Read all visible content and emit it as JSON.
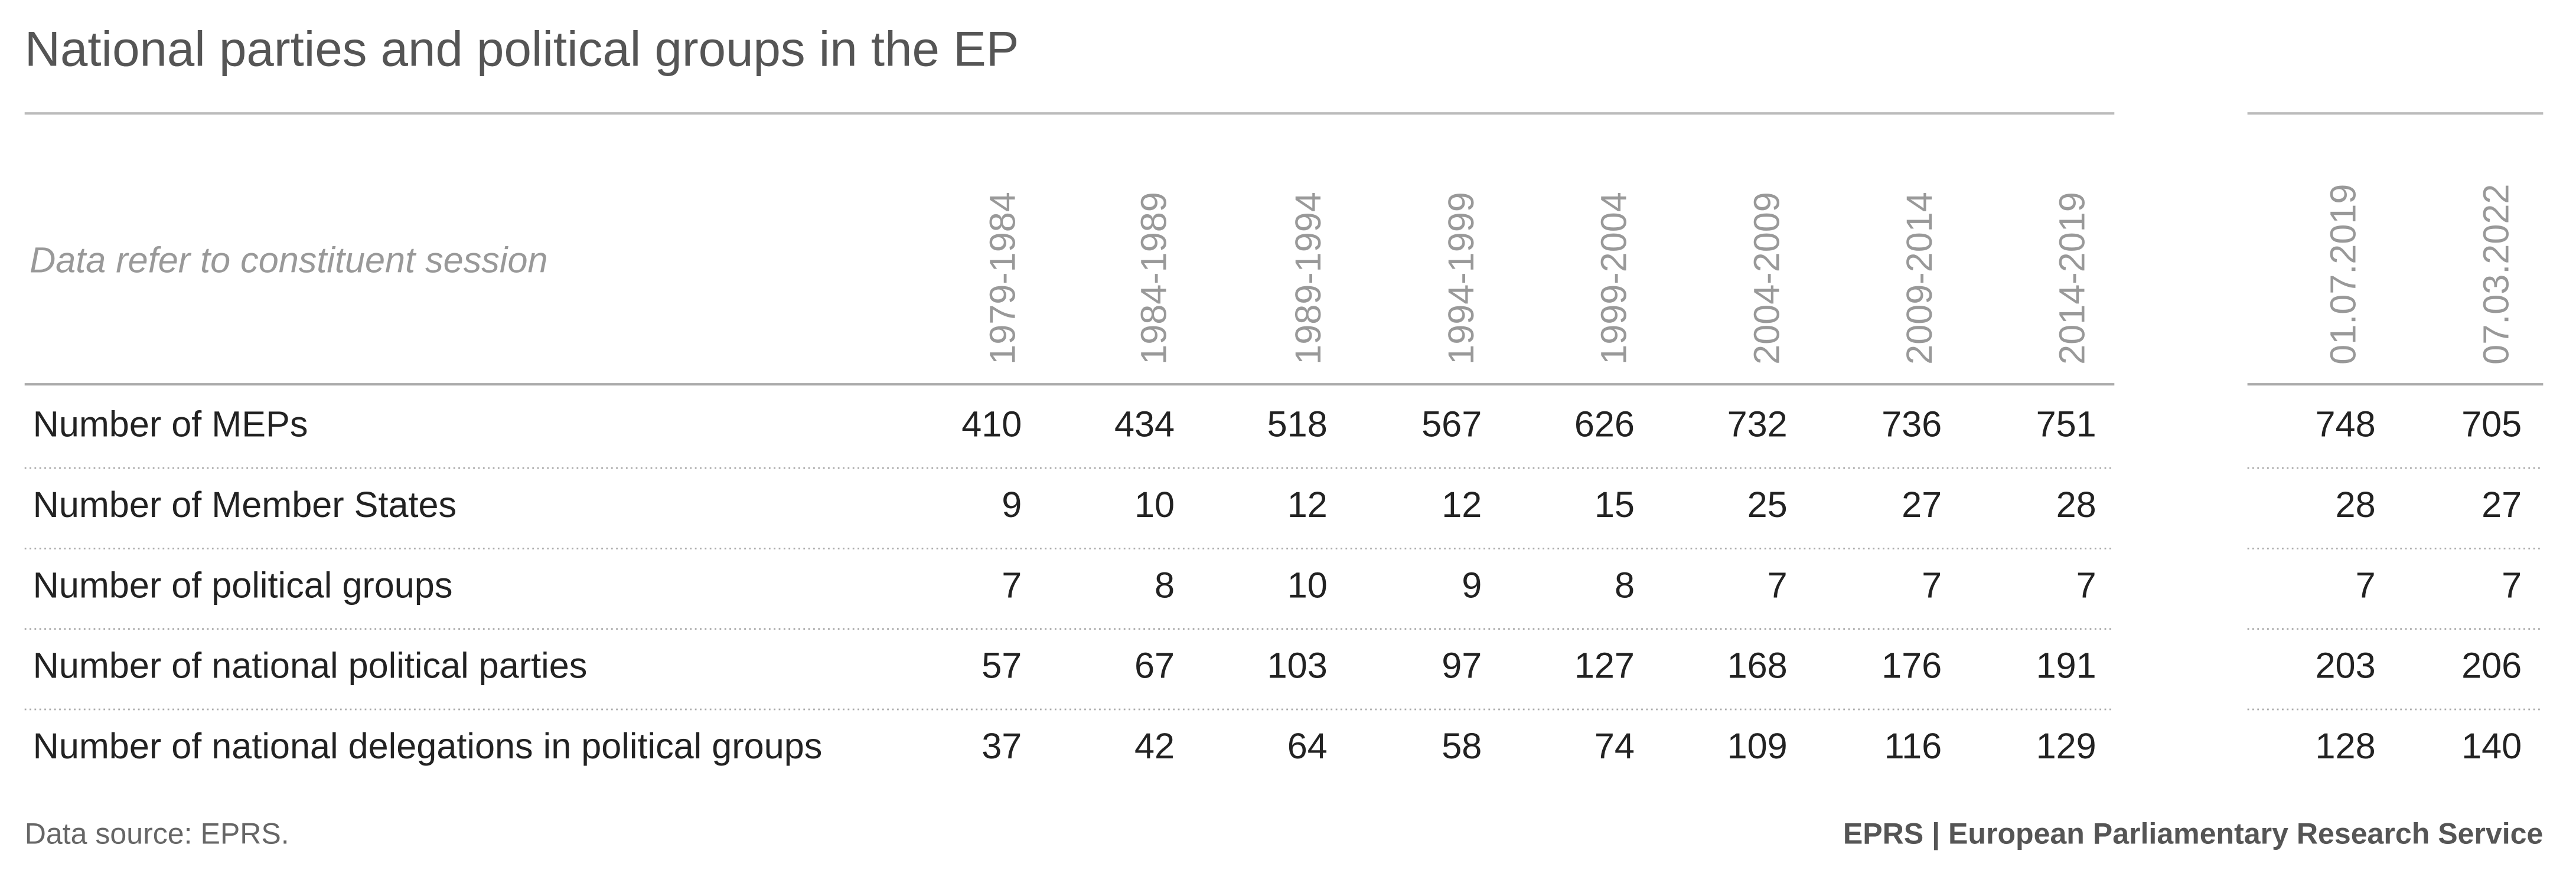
{
  "header": {
    "title": "National parties and political groups in the EP"
  },
  "table": {
    "note": "Data refer to constituent session",
    "columns": [
      "1979-1984",
      "1984-1989",
      "1989-1994",
      "1994-1999",
      "1999-2004",
      "2004-2009",
      "2009-2014",
      "2014-2019",
      "01.07.2019",
      "07.03.2022"
    ],
    "rows": [
      {
        "label": "Number of MEPs",
        "values": [
          410,
          434,
          518,
          567,
          626,
          732,
          736,
          751,
          748,
          705
        ]
      },
      {
        "label": "Number of Member States",
        "values": [
          9,
          10,
          12,
          12,
          15,
          25,
          27,
          28,
          28,
          27
        ]
      },
      {
        "label": "Number of political groups",
        "values": [
          7,
          8,
          10,
          9,
          8,
          7,
          7,
          7,
          7,
          7
        ]
      },
      {
        "label": "Number of national political parties",
        "values": [
          57,
          67,
          103,
          97,
          127,
          168,
          176,
          191,
          203,
          206
        ]
      },
      {
        "label": "Number of national delegations in political groups",
        "values": [
          37,
          42,
          64,
          58,
          74,
          109,
          116,
          129,
          128,
          140
        ]
      }
    ]
  },
  "footer": {
    "source": "Data source: EPRS.",
    "credit": "EPRS | European Parliamentary Research Service"
  }
}
